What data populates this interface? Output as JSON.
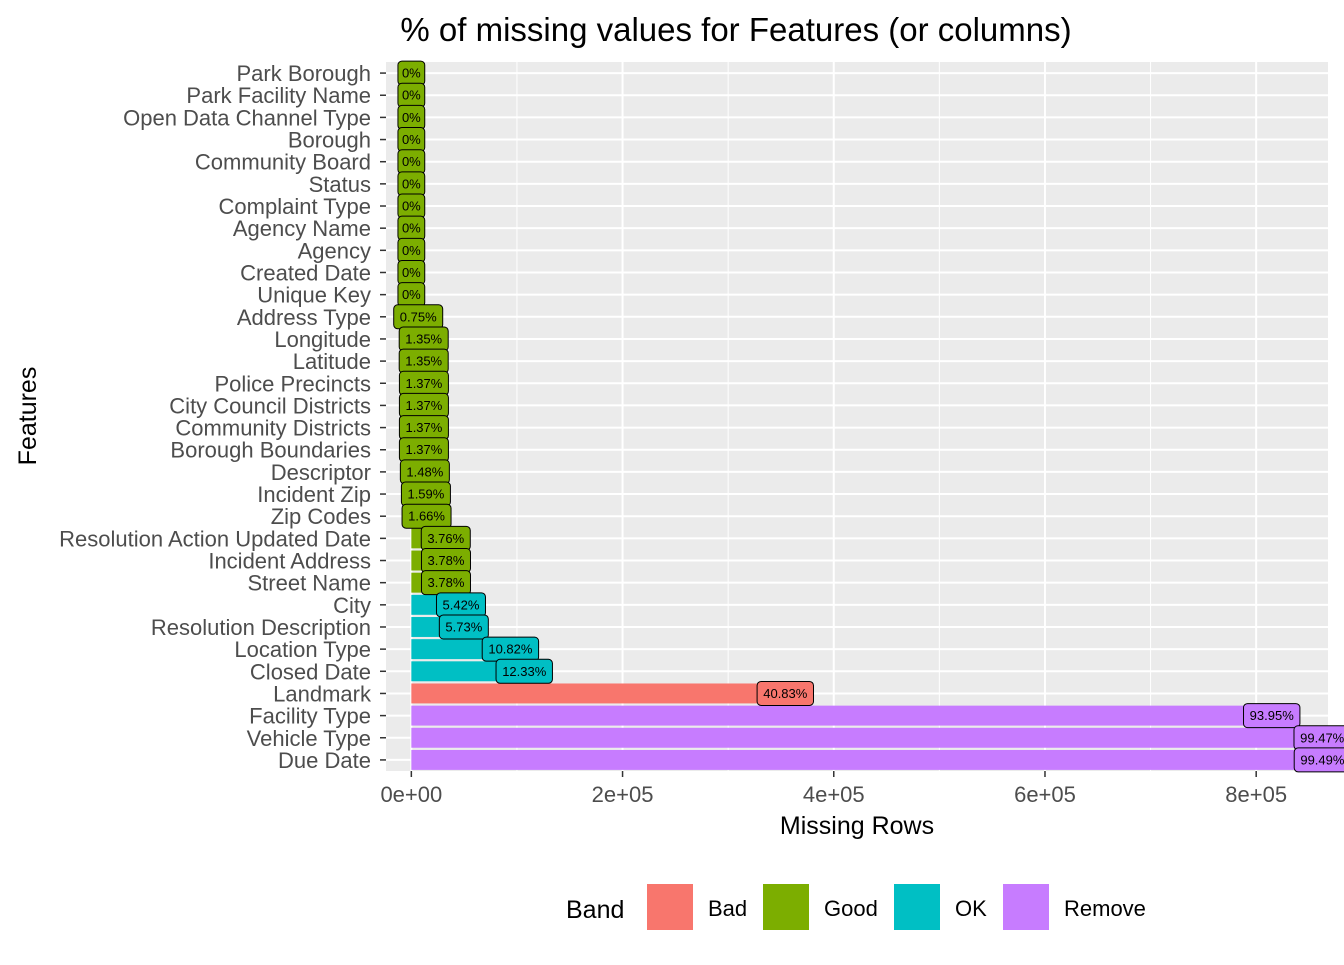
{
  "chart_data": {
    "type": "bar",
    "orientation": "horizontal",
    "title": "% of missing values for Features (or columns)",
    "xlabel": "Missing Rows",
    "ylabel": "Features",
    "xlim": [
      -24000,
      868000
    ],
    "x_ticks": [
      0,
      200000,
      400000,
      600000,
      800000
    ],
    "x_tick_labels": [
      "0e+00",
      "2e+05",
      "4e+05",
      "6e+05",
      "8e+05"
    ],
    "grid": true,
    "legend": {
      "title": "Band",
      "position": "bottom",
      "entries": [
        {
          "label": "Bad",
          "color": "#F8766D"
        },
        {
          "label": "Good",
          "color": "#7CAE00"
        },
        {
          "label": "OK",
          "color": "#00BFC4"
        },
        {
          "label": "Remove",
          "color": "#C77CFF"
        }
      ]
    },
    "categories": [
      "Park Borough",
      "Park Facility Name",
      "Open Data Channel Type",
      "Borough",
      "Community Board",
      "Status",
      "Complaint Type",
      "Agency Name",
      "Agency",
      "Created Date",
      "Unique Key",
      "Address Type",
      "Longitude",
      "Latitude",
      "Police Precincts",
      "City Council Districts",
      "Community Districts",
      "Borough Boundaries",
      "Descriptor",
      "Incident Zip",
      "Zip Codes",
      "Resolution Action Updated Date",
      "Incident Address",
      "Street Name",
      "City",
      "Resolution Description",
      "Location Type",
      "Closed Date",
      "Landmark",
      "Facility Type",
      "Vehicle Type",
      "Due Date"
    ],
    "values": [
      0,
      0,
      0,
      0,
      0,
      0,
      0,
      0,
      0,
      0,
      0,
      6500,
      11700,
      11700,
      11900,
      11900,
      11900,
      11900,
      12800,
      13800,
      14400,
      32600,
      32800,
      32800,
      47000,
      49700,
      93800,
      106900,
      354100,
      814700,
      862500,
      862700
    ],
    "percent_labels": [
      "0%",
      "0%",
      "0%",
      "0%",
      "0%",
      "0%",
      "0%",
      "0%",
      "0%",
      "0%",
      "0%",
      "0.75%",
      "1.35%",
      "1.35%",
      "1.37%",
      "1.37%",
      "1.37%",
      "1.37%",
      "1.48%",
      "1.59%",
      "1.66%",
      "3.76%",
      "3.78%",
      "3.78%",
      "5.42%",
      "5.73%",
      "10.82%",
      "12.33%",
      "40.83%",
      "93.95%",
      "99.47%",
      "99.49%"
    ],
    "bands": [
      "Good",
      "Good",
      "Good",
      "Good",
      "Good",
      "Good",
      "Good",
      "Good",
      "Good",
      "Good",
      "Good",
      "Good",
      "Good",
      "Good",
      "Good",
      "Good",
      "Good",
      "Good",
      "Good",
      "Good",
      "Good",
      "Good",
      "Good",
      "Good",
      "OK",
      "OK",
      "OK",
      "OK",
      "Bad",
      "Remove",
      "Remove",
      "Remove"
    ]
  }
}
